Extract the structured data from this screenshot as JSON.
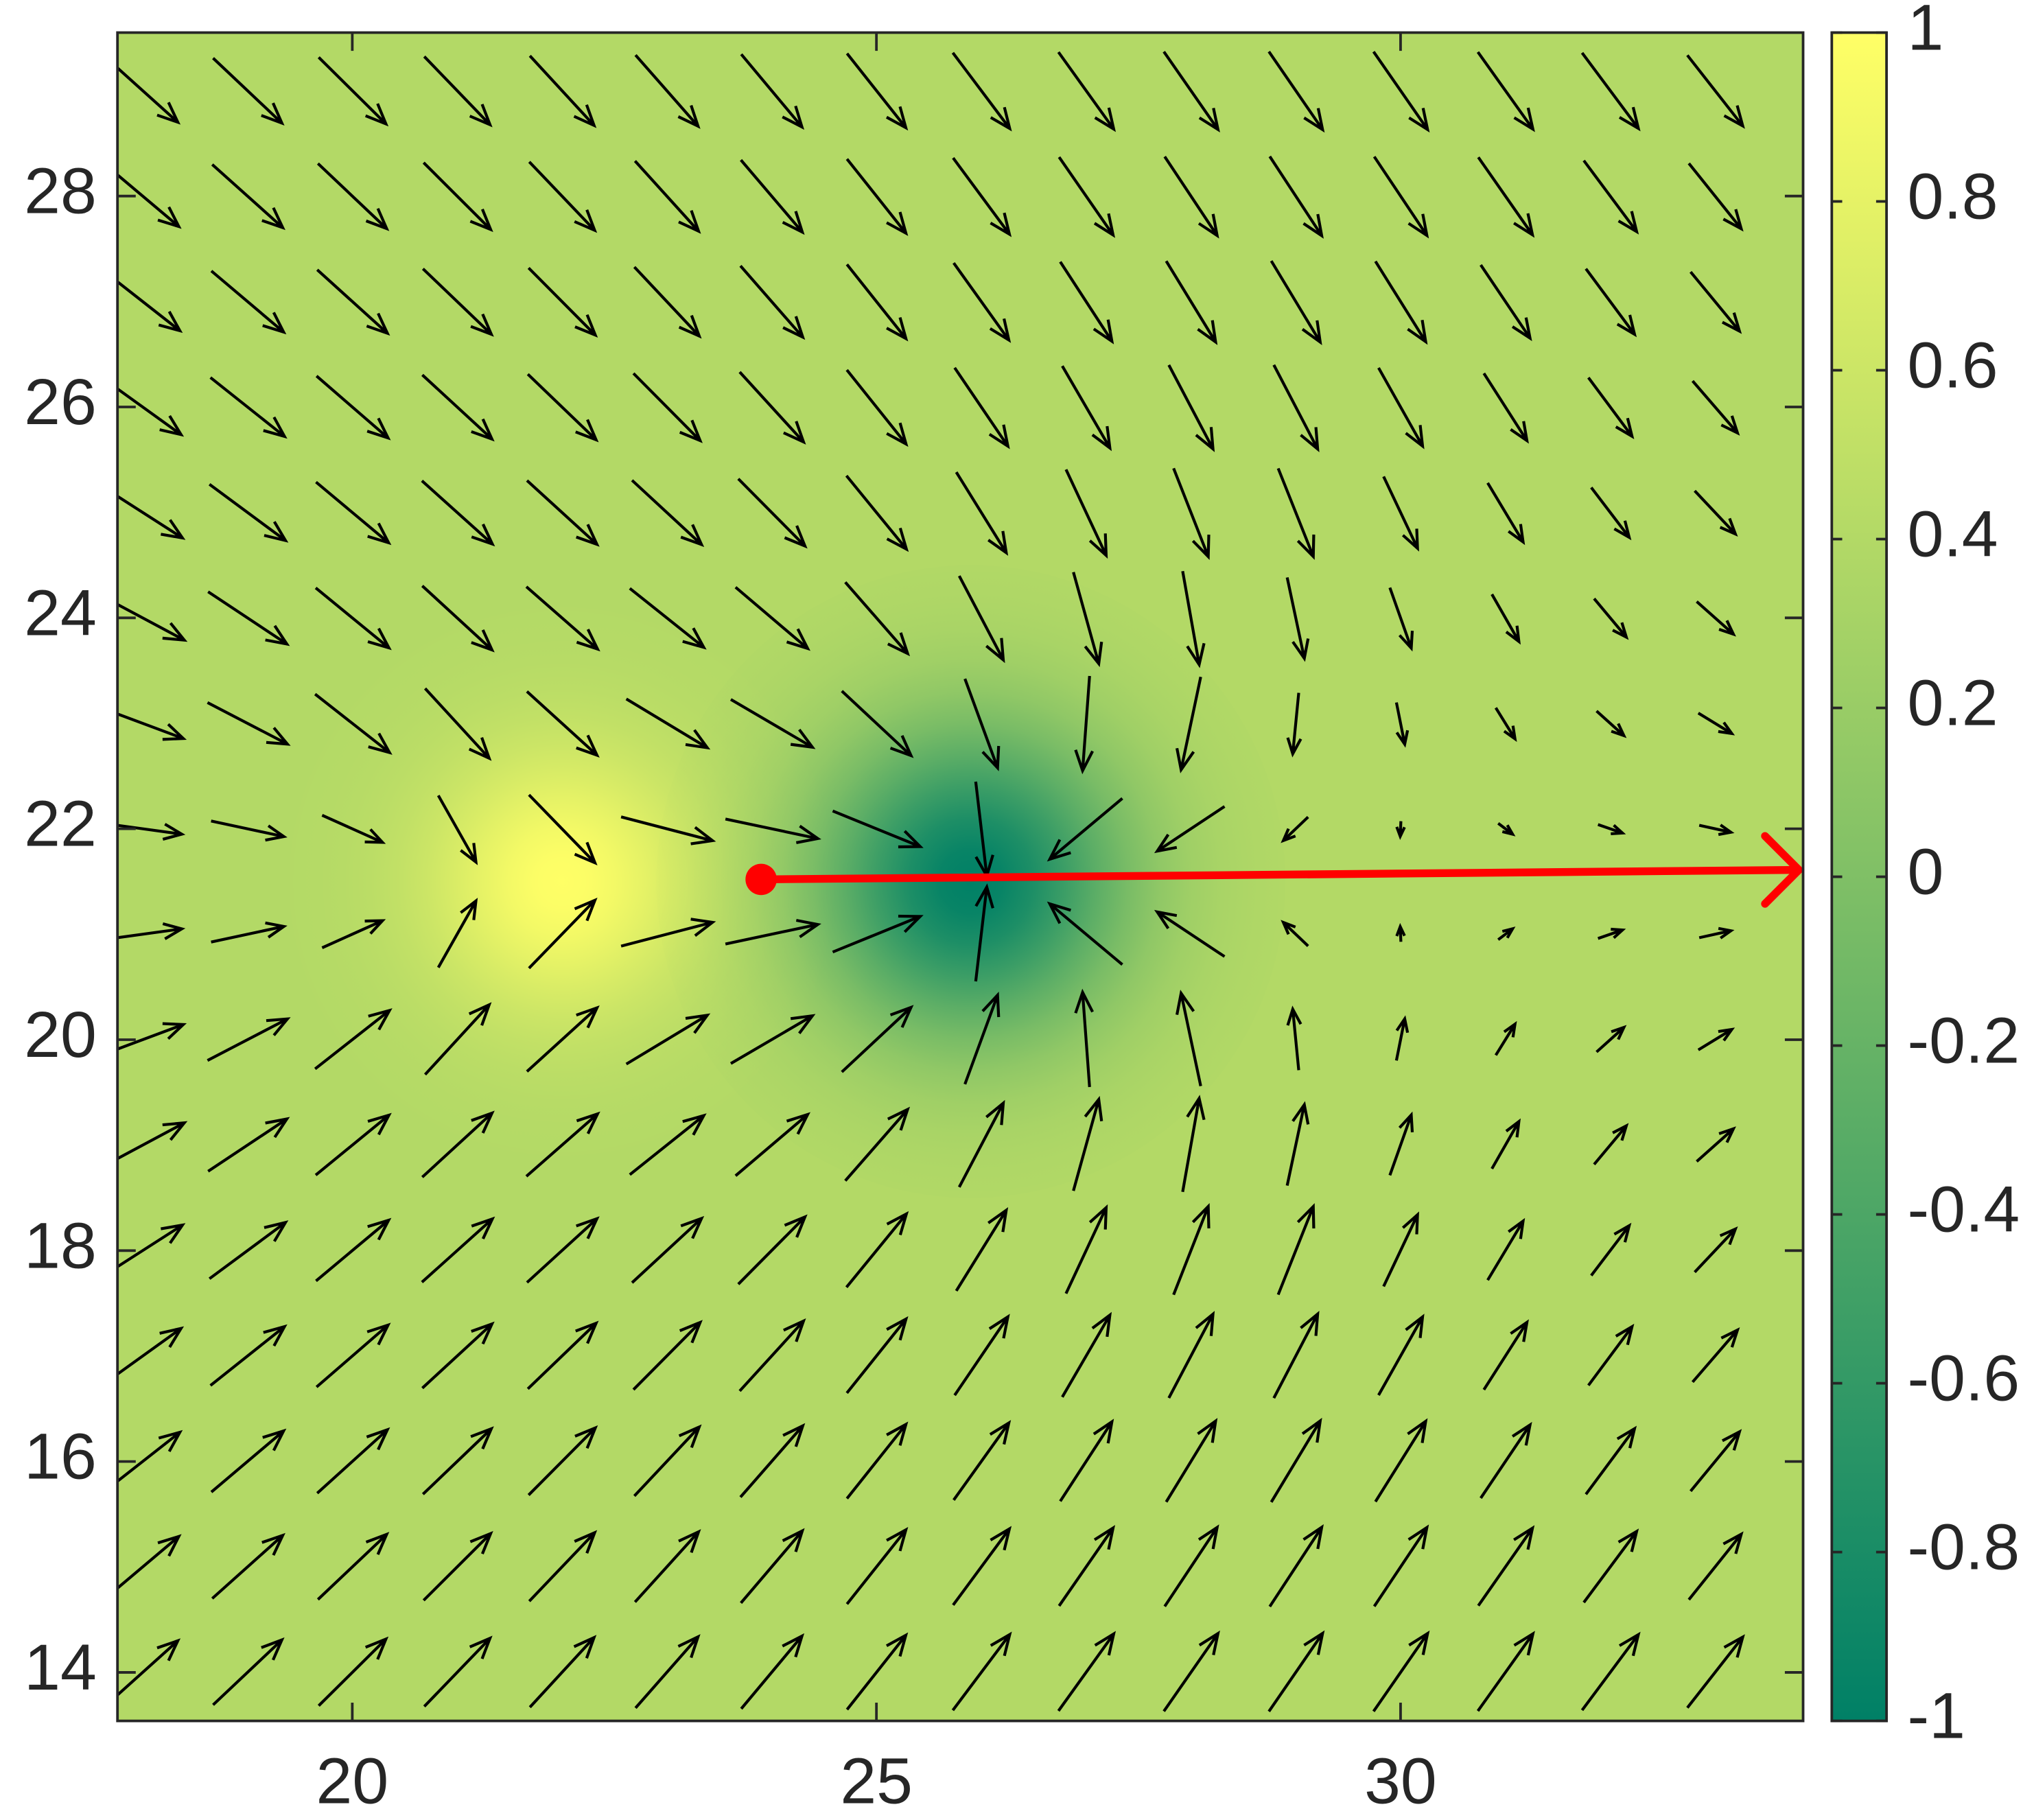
{
  "chart_data": {
    "type": "quiver",
    "xlim": [
      17.76,
      33.84
    ],
    "ylim": [
      13.54,
      29.55
    ],
    "xticks": [
      20,
      25,
      30
    ],
    "yticks": [
      14,
      16,
      18,
      20,
      22,
      24,
      26,
      28
    ],
    "colorbar": {
      "clim": [
        -1,
        1
      ],
      "ticks": [
        -1,
        -0.8,
        -0.6,
        -0.4,
        -0.2,
        0,
        0.2,
        0.4,
        0.6,
        0.8,
        1
      ],
      "colormap": "summer"
    },
    "field": {
      "level": 0.4,
      "peaks": [
        {
          "x": 22,
          "y": 21.5,
          "value": 1
        },
        {
          "x": 25.9,
          "y": 21.5,
          "value": -1
        }
      ]
    },
    "quiver": {
      "x": [
        18,
        19,
        20,
        21,
        22,
        23,
        24,
        25,
        26,
        27,
        28,
        29,
        30,
        31,
        32,
        33
      ],
      "y": [
        14,
        15,
        16,
        17,
        18,
        19,
        20,
        21,
        22,
        23,
        24,
        25,
        26,
        27,
        28,
        29
      ],
      "color": "#000000"
    },
    "path": {
      "x": [
        23.9,
        33.8
      ],
      "y": [
        21.52,
        21.61
      ],
      "color": "#ff0000"
    }
  }
}
